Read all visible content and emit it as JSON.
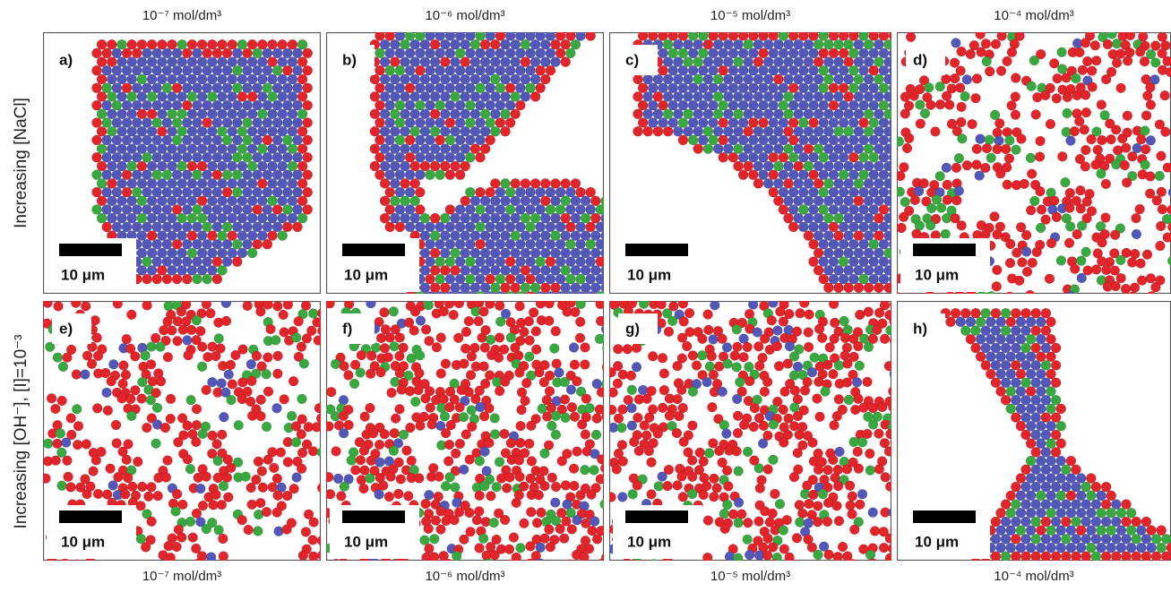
{
  "top_labels": [
    "10⁻⁷ mol/dm³",
    "10⁻⁶ mol/dm³",
    "10⁻⁵ mol/dm³",
    "10⁻⁴ mol/dm³"
  ],
  "bottom_labels": [
    "10⁻⁷ mol/dm³",
    "10⁻⁶ mol/dm³",
    "10⁻⁵ mol/dm³",
    "10⁻⁴ mol/dm³"
  ],
  "row_labels": [
    "Increasing [NaCl]",
    "Increasing [OH⁻], [I]=10⁻³"
  ],
  "panels": [
    {
      "label": "a)",
      "scale": "10 μm"
    },
    {
      "label": "b)",
      "scale": "10 μm"
    },
    {
      "label": "c)",
      "scale": "10 μm"
    },
    {
      "label": "d)",
      "scale": "10 μm"
    },
    {
      "label": "e)",
      "scale": "10 μm"
    },
    {
      "label": "f)",
      "scale": "10 μm"
    },
    {
      "label": "g)",
      "scale": "10 μm"
    },
    {
      "label": "h)",
      "scale": "10 μm"
    }
  ]
}
